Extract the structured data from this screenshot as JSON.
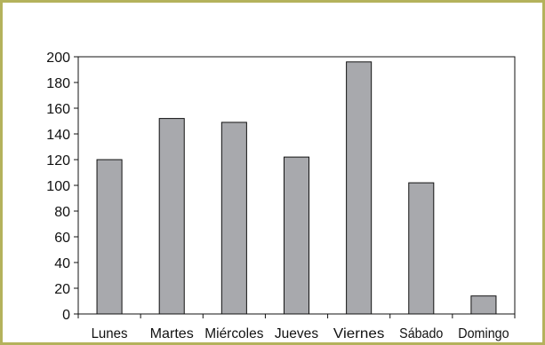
{
  "chart_data": {
    "type": "bar",
    "title": "",
    "xlabel": "",
    "ylabel": "",
    "categories": [
      "Lunes",
      "Martes",
      "Miércoles",
      "Jueves",
      "Viernes",
      "Sábado",
      "Domingo"
    ],
    "values": [
      120,
      152,
      149,
      122,
      196,
      102,
      14
    ],
    "ylim": [
      0,
      200
    ],
    "yticks": [
      "0",
      "20",
      "40",
      "60",
      "80",
      "100",
      "120",
      "140",
      "160",
      "180",
      "200"
    ],
    "grid": false,
    "legend": "none",
    "colors": {
      "bar_fill": "#a8a9ad",
      "bar_stroke": "#111111",
      "axis": "#111111",
      "frame_border": "#b4b25c"
    }
  }
}
